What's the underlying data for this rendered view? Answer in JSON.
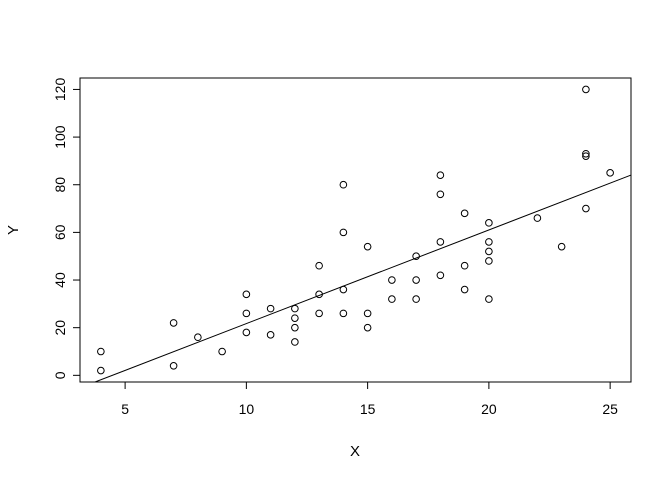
{
  "chart_data": {
    "type": "scatter",
    "title": "",
    "xlabel": "X",
    "ylabel": "Y",
    "xlim": [
      3.14,
      25.86
    ],
    "ylim": [
      -2.8,
      124.8
    ],
    "xticks": [
      5,
      10,
      15,
      20,
      25
    ],
    "yticks": [
      0,
      20,
      40,
      60,
      80,
      100,
      120
    ],
    "grid": false,
    "legend": "none",
    "point_color": "#000000",
    "line_color": "#000000",
    "series": [
      {
        "x": [
          4,
          4,
          7,
          7,
          8,
          9,
          10,
          10,
          10,
          11,
          11,
          12,
          12,
          12,
          12,
          13,
          13,
          13,
          14,
          14,
          14,
          14,
          15,
          15,
          15,
          16,
          16,
          17,
          17,
          17,
          18,
          18,
          18,
          18,
          19,
          19,
          19,
          20,
          20,
          20,
          20,
          20,
          22,
          23,
          24,
          24,
          24,
          24,
          25
        ],
        "y": [
          2,
          10,
          4,
          22,
          16,
          10,
          18,
          26,
          34,
          17,
          28,
          14,
          20,
          24,
          28,
          26,
          34,
          46,
          26,
          36,
          60,
          80,
          20,
          26,
          54,
          32,
          40,
          32,
          40,
          50,
          42,
          56,
          76,
          84,
          36,
          46,
          68,
          32,
          48,
          52,
          56,
          64,
          66,
          54,
          70,
          92,
          93,
          120,
          85
        ]
      }
    ],
    "regression_line": {
      "intercept": -17.58,
      "slope": 3.93
    }
  }
}
